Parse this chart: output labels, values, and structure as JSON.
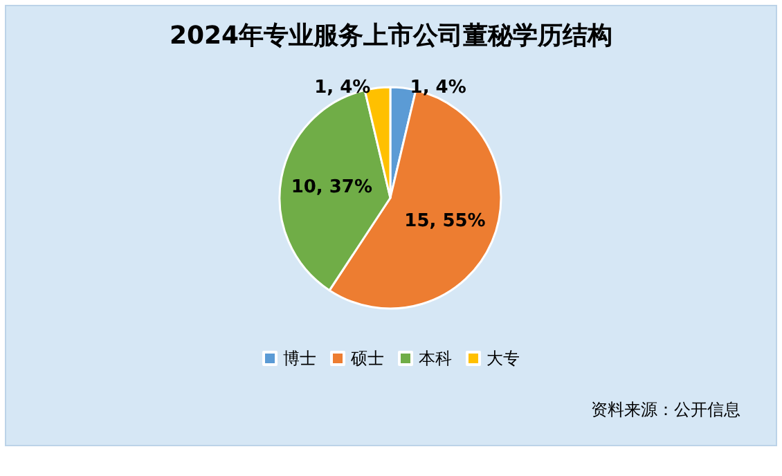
{
  "chart_data": {
    "type": "pie",
    "title": "2024年专业服务上市公司董秘学历结构",
    "categories": [
      "博士",
      "硕士",
      "本科",
      "大专"
    ],
    "values": [
      1,
      15,
      10,
      1
    ],
    "colors": [
      "#5b9bd5",
      "#ed7d31",
      "#70ad47",
      "#ffc000"
    ],
    "value_labels": [
      "1, 4%",
      "15, 55%",
      "10, 37%",
      "1, 4%"
    ],
    "legend": "bottom",
    "annotations": [
      "资料来源：公开信息"
    ]
  }
}
